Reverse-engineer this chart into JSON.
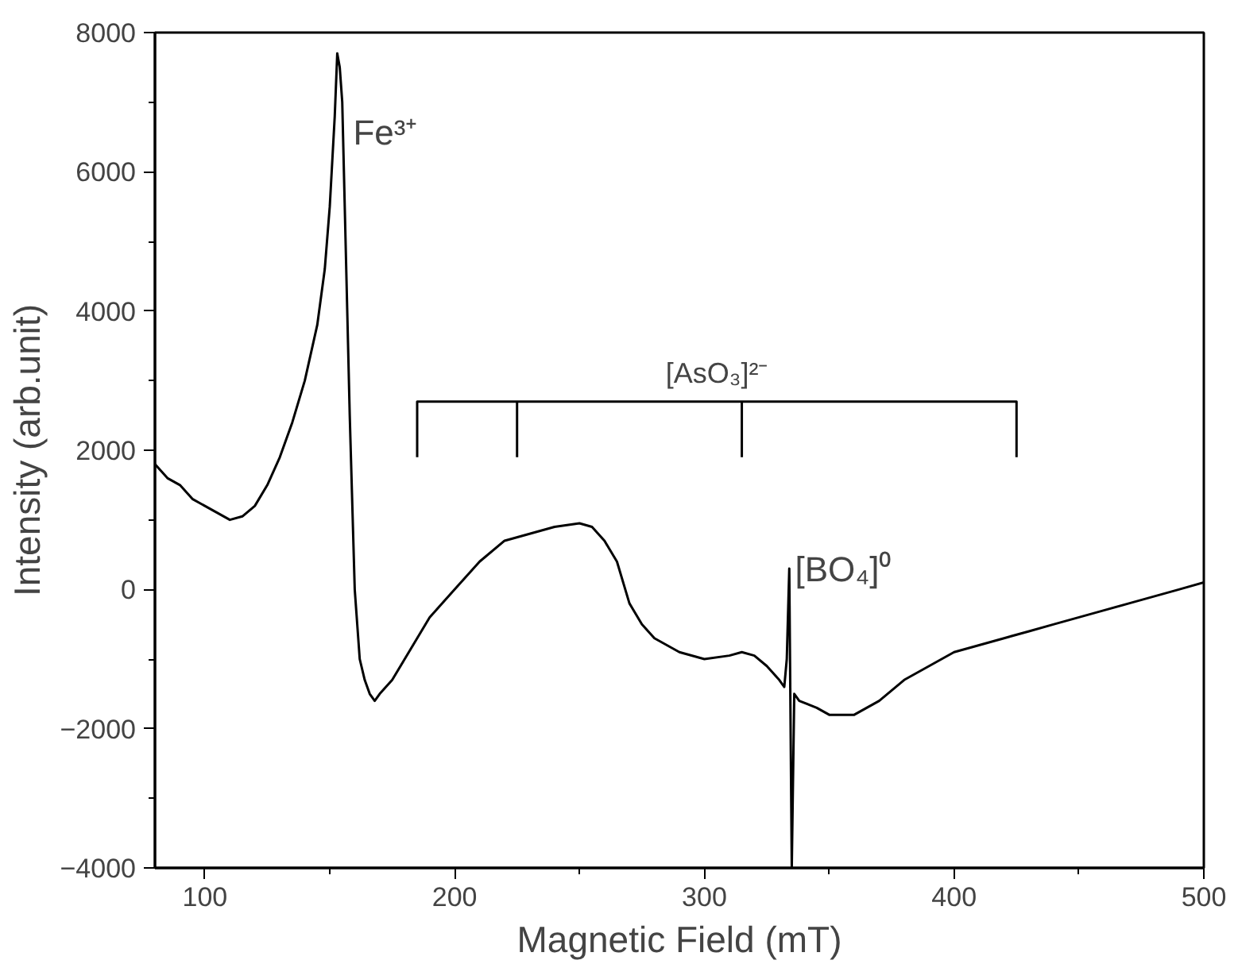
{
  "chart_data": {
    "type": "line",
    "xlabel": "Magnetic Field (mT)",
    "ylabel": "Intensity (arb.unit)",
    "xlim": [
      80,
      500
    ],
    "xticks": [
      100,
      200,
      300,
      400,
      500
    ],
    "ylim": [
      -4000,
      8000
    ],
    "yticks": [
      -4000,
      -2000,
      0,
      2000,
      4000,
      6000,
      8000
    ],
    "grid": false,
    "marker": "none",
    "line_style": "solid",
    "series": [
      {
        "color": "#000000",
        "x": [
          80,
          85,
          90,
          95,
          100,
          105,
          110,
          115,
          120,
          125,
          130,
          135,
          140,
          145,
          148,
          150,
          152,
          153,
          154,
          155,
          156,
          157,
          158,
          160,
          162,
          164,
          166,
          168,
          170,
          175,
          180,
          185,
          190,
          200,
          210,
          220,
          230,
          240,
          250,
          255,
          260,
          265,
          270,
          275,
          280,
          290,
          300,
          310,
          315,
          320,
          325,
          330,
          332,
          333,
          334,
          335,
          336,
          338,
          345,
          350,
          360,
          370,
          380,
          390,
          400,
          410,
          420,
          430,
          440,
          450,
          460,
          470,
          480,
          490,
          500
        ],
        "values": [
          1800,
          1600,
          1500,
          1300,
          1200,
          1100,
          1000,
          1050,
          1200,
          1500,
          1900,
          2400,
          3000,
          3800,
          4600,
          5500,
          6800,
          7700,
          7500,
          7000,
          5500,
          4000,
          2500,
          0,
          -1000,
          -1300,
          -1500,
          -1600,
          -1500,
          -1300,
          -1000,
          -700,
          -400,
          0,
          400,
          700,
          800,
          900,
          950,
          900,
          700,
          400,
          -200,
          -500,
          -700,
          -900,
          -1000,
          -950,
          -900,
          -950,
          -1100,
          -1300,
          -1400,
          -1000,
          300,
          -4000,
          -1500,
          -1600,
          -1700,
          -1800,
          -1800,
          -1600,
          -1300,
          -1100,
          -900,
          -800,
          -700,
          -600,
          -500,
          -400,
          -300,
          -200,
          -100,
          0,
          100
        ]
      },
      {
        "color": "#000000",
        "x": [
          185,
          185,
          425,
          425
        ],
        "values": [
          1900,
          2700,
          2700,
          1900
        ]
      },
      {
        "color": "#000000",
        "x": [
          225,
          225
        ],
        "values": [
          1900,
          2700
        ]
      },
      {
        "color": "#000000",
        "x": [
          315,
          315
        ],
        "values": [
          2700,
          1900
        ]
      }
    ],
    "annotations": [
      "Fe³⁺",
      "[AsO₃]²⁻",
      "[BO₄]⁰"
    ]
  }
}
